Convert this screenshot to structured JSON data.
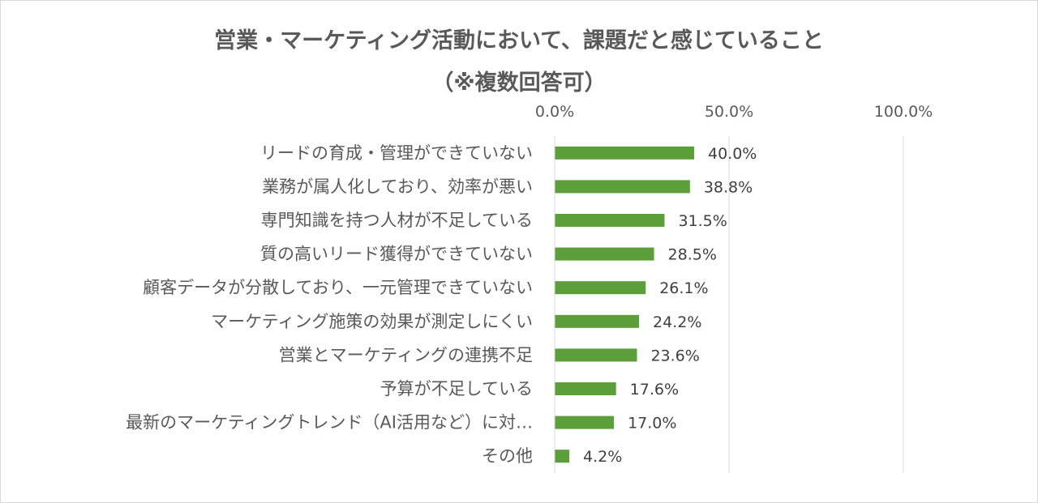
{
  "chart_data": {
    "type": "bar",
    "orientation": "horizontal",
    "title": "営業・マーケティング活動において、課題だと感じていること",
    "subtitle": "（※複数回答可）",
    "categories": [
      "リードの育成・管理ができていない",
      "業務が属人化しており、効率が悪い",
      "専門知識を持つ人材が不足している",
      "質の高いリード獲得ができていない",
      "顧客データが分散しており、一元管理できていない",
      "マーケティング施策の効果が測定しにくい",
      "営業とマーケティングの連携不足",
      "予算が不足している",
      "最新のマーケティングトレンド（AI活用など）に対…",
      "その他"
    ],
    "values": [
      40.0,
      38.8,
      31.5,
      28.5,
      26.1,
      24.2,
      23.6,
      17.6,
      17.0,
      4.2
    ],
    "data_labels": [
      "40.0%",
      "38.8%",
      "31.5%",
      "28.5%",
      "26.1%",
      "24.2%",
      "23.6%",
      "17.6%",
      "17.0%",
      "4.2%"
    ],
    "xlim": [
      0,
      100
    ],
    "x_ticks": [
      0,
      50,
      100
    ],
    "x_tick_labels": [
      "0.0%",
      "50.0%",
      "100.0%"
    ],
    "x_axis_position": "top",
    "grid": true,
    "legend": "none",
    "bar_color": "#5b9e3a",
    "grid_color": "#d9d9d9"
  }
}
